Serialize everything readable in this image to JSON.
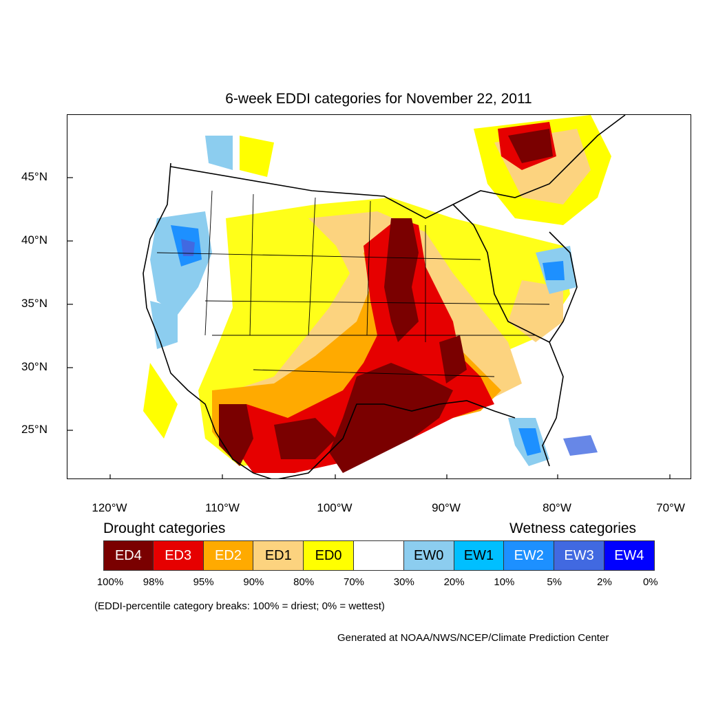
{
  "title": "6-week EDDI categories for November 22, 2011",
  "axes": {
    "y_labels": [
      "45°N",
      "40°N",
      "35°N",
      "30°N",
      "25°N"
    ],
    "x_labels": [
      "120°W",
      "110°W",
      "100°W",
      "90°W",
      "80°W",
      "70°W"
    ]
  },
  "legend": {
    "drought_heading": "Drought categories",
    "wetness_heading": "Wetness categories",
    "categories": [
      {
        "label": "ED4",
        "color": "#7a0000",
        "text_color": "#ffffff"
      },
      {
        "label": "ED3",
        "color": "#e60000",
        "text_color": "#ffffff"
      },
      {
        "label": "ED2",
        "color": "#ffaa00",
        "text_color": "#ffffff"
      },
      {
        "label": "ED1",
        "color": "#fcd37f",
        "text_color": "#000000"
      },
      {
        "label": "ED0",
        "color": "#ffff00",
        "text_color": "#000000"
      },
      {
        "label": "",
        "color": "#ffffff",
        "text_color": "#000000"
      },
      {
        "label": "EW0",
        "color": "#8ccdef",
        "text_color": "#000000"
      },
      {
        "label": "EW1",
        "color": "#00bfff",
        "text_color": "#000000"
      },
      {
        "label": "EW2",
        "color": "#1d90ff",
        "text_color": "#ffffff"
      },
      {
        "label": "EW3",
        "color": "#4169e1",
        "text_color": "#ffffff"
      },
      {
        "label": "EW4",
        "color": "#0000ff",
        "text_color": "#ffffff"
      }
    ],
    "percentiles": [
      "100%",
      "98%",
      "95%",
      "90%",
      "80%",
      "70%",
      "30%",
      "20%",
      "10%",
      "5%",
      "2%",
      "0%"
    ]
  },
  "note": "(EDDI-percentile category breaks: 100% = driest; 0% = wettest)",
  "credit": "Generated at NOAA/NWS/NCEP/Climate Prediction Center"
}
